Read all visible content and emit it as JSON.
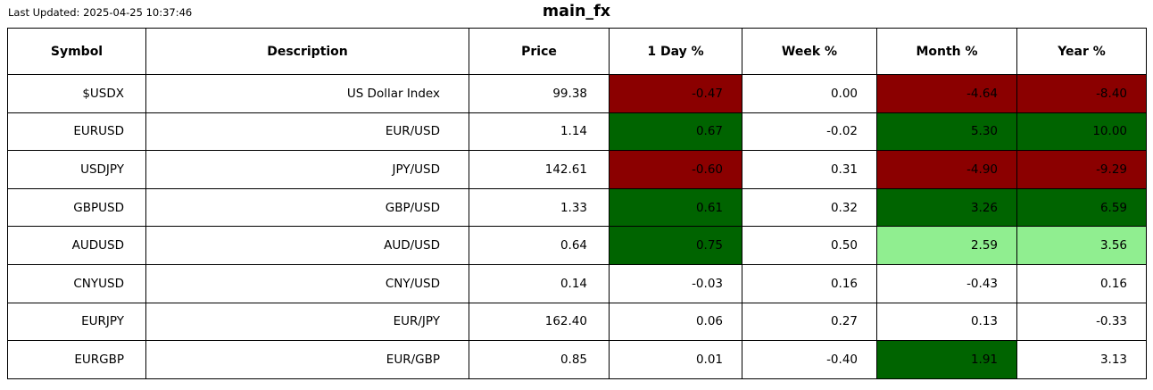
{
  "meta": {
    "last_updated": "Last Updated: 2025-04-25 10:37:46",
    "title": "main_fx"
  },
  "colors": {
    "strong_negative": "#8B0000",
    "strong_positive": "#006400",
    "mild_positive": "#90EE90",
    "neutral": "#FFFFFF",
    "border": "#000000",
    "text": "#000000"
  },
  "table": {
    "columns": [
      "Symbol",
      "Description",
      "Price",
      "1 Day %",
      "Week %",
      "Month %",
      "Year %"
    ],
    "rows": [
      {
        "symbol": "$USDX",
        "description": "US Dollar Index",
        "price": "99.38",
        "day": "-0.47",
        "week": "0.00",
        "month": "-4.64",
        "year": "-8.40",
        "tones": {
          "day": "strong_negative",
          "week": "neutral",
          "month": "strong_negative",
          "year": "strong_negative"
        }
      },
      {
        "symbol": "EURUSD",
        "description": "EUR/USD",
        "price": "1.14",
        "day": "0.67",
        "week": "-0.02",
        "month": "5.30",
        "year": "10.00",
        "tones": {
          "day": "strong_positive",
          "week": "neutral",
          "month": "strong_positive",
          "year": "strong_positive"
        }
      },
      {
        "symbol": "USDJPY",
        "description": "JPY/USD",
        "price": "142.61",
        "day": "-0.60",
        "week": "0.31",
        "month": "-4.90",
        "year": "-9.29",
        "tones": {
          "day": "strong_negative",
          "week": "neutral",
          "month": "strong_negative",
          "year": "strong_negative"
        }
      },
      {
        "symbol": "GBPUSD",
        "description": "GBP/USD",
        "price": "1.33",
        "day": "0.61",
        "week": "0.32",
        "month": "3.26",
        "year": "6.59",
        "tones": {
          "day": "strong_positive",
          "week": "neutral",
          "month": "strong_positive",
          "year": "strong_positive"
        }
      },
      {
        "symbol": "AUDUSD",
        "description": "AUD/USD",
        "price": "0.64",
        "day": "0.75",
        "week": "0.50",
        "month": "2.59",
        "year": "3.56",
        "tones": {
          "day": "strong_positive",
          "week": "neutral",
          "month": "mild_positive",
          "year": "mild_positive"
        }
      },
      {
        "symbol": "CNYUSD",
        "description": "CNY/USD",
        "price": "0.14",
        "day": "-0.03",
        "week": "0.16",
        "month": "-0.43",
        "year": "0.16",
        "tones": {
          "day": "neutral",
          "week": "neutral",
          "month": "neutral",
          "year": "neutral"
        }
      },
      {
        "symbol": "EURJPY",
        "description": "EUR/JPY",
        "price": "162.40",
        "day": "0.06",
        "week": "0.27",
        "month": "0.13",
        "year": "-0.33",
        "tones": {
          "day": "neutral",
          "week": "neutral",
          "month": "neutral",
          "year": "neutral"
        }
      },
      {
        "symbol": "EURGBP",
        "description": "EUR/GBP",
        "price": "0.85",
        "day": "0.01",
        "week": "-0.40",
        "month": "1.91",
        "year": "3.13",
        "tones": {
          "day": "neutral",
          "week": "neutral",
          "month": "strong_positive",
          "year": "neutral"
        }
      }
    ]
  },
  "chart_data": {
    "type": "table",
    "title": "main_fx",
    "annotations": [
      "Last Updated: 2025-04-25 10:37:46"
    ],
    "columns": [
      "Symbol",
      "Description",
      "Price",
      "1 Day %",
      "Week %",
      "Month %",
      "Year %"
    ],
    "rows": [
      [
        "$USDX",
        "US Dollar Index",
        99.38,
        -0.47,
        0.0,
        -4.64,
        -8.4
      ],
      [
        "EURUSD",
        "EUR/USD",
        1.14,
        0.67,
        -0.02,
        5.3,
        10.0
      ],
      [
        "USDJPY",
        "JPY/USD",
        142.61,
        -0.6,
        0.31,
        -4.9,
        -9.29
      ],
      [
        "GBPUSD",
        "GBP/USD",
        1.33,
        0.61,
        0.32,
        3.26,
        6.59
      ],
      [
        "AUDUSD",
        "AUD/USD",
        0.64,
        0.75,
        0.5,
        2.59,
        3.56
      ],
      [
        "CNYUSD",
        "CNY/USD",
        0.14,
        -0.03,
        0.16,
        -0.43,
        0.16
      ],
      [
        "EURJPY",
        "EUR/JPY",
        162.4,
        0.06,
        0.27,
        0.13,
        -0.33
      ],
      [
        "EURGBP",
        "EUR/GBP",
        0.85,
        0.01,
        -0.4,
        1.91,
        3.13
      ]
    ],
    "cell_highlight_colors": {
      "legend": {
        "#8B0000": "strong negative",
        "#006400": "strong positive",
        "#90EE90": "mild positive",
        "none": "neutral"
      },
      "per_row_day_week_month_year": [
        [
          "#8B0000",
          "none",
          "#8B0000",
          "#8B0000"
        ],
        [
          "#006400",
          "none",
          "#006400",
          "#006400"
        ],
        [
          "#8B0000",
          "none",
          "#8B0000",
          "#8B0000"
        ],
        [
          "#006400",
          "none",
          "#006400",
          "#006400"
        ],
        [
          "#006400",
          "none",
          "#90EE90",
          "#90EE90"
        ],
        [
          "none",
          "none",
          "none",
          "none"
        ],
        [
          "none",
          "none",
          "none",
          "none"
        ],
        [
          "none",
          "none",
          "#006400",
          "none"
        ]
      ]
    },
    "layout": {
      "grid": true,
      "header_bold": true,
      "data_alignment": "right"
    }
  }
}
